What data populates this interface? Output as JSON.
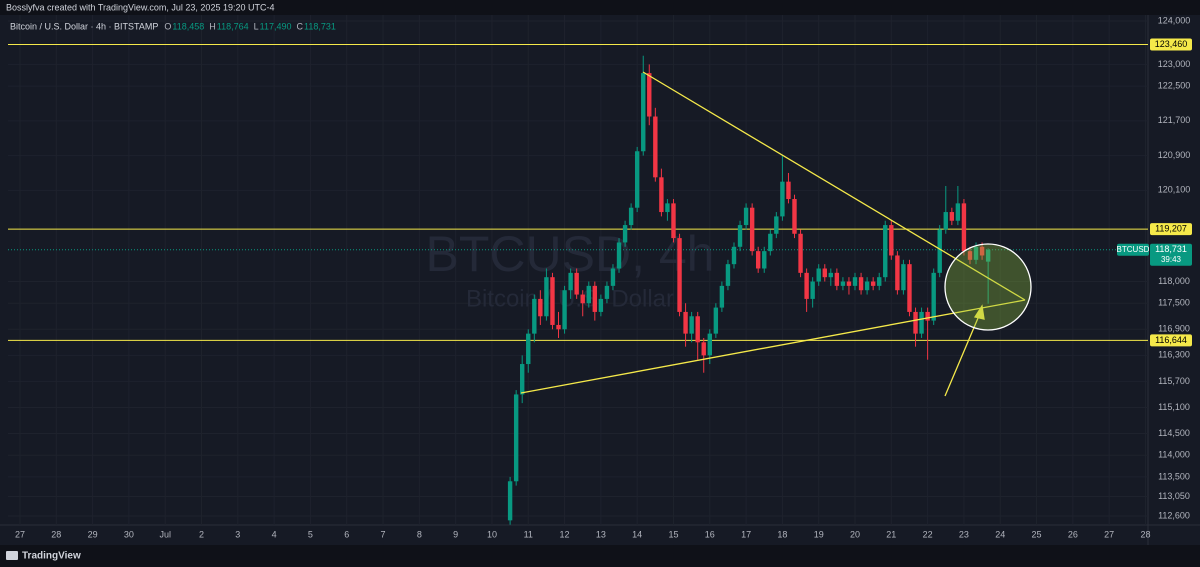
{
  "header": {
    "text": "Bosslyfva created with TradingView.com, Jul 23, 2025 19:20 UTC-4"
  },
  "footer": {
    "brand": "TradingView"
  },
  "chart_data": {
    "type": "candlestick",
    "legend": {
      "symbol": "Bitcoin / U.S. Dollar · 4h · BITSTAMP",
      "ohlc": [
        {
          "key": "O",
          "value": "118,458"
        },
        {
          "key": "H",
          "value": "118,764"
        },
        {
          "key": "L",
          "value": "117,490"
        },
        {
          "key": "C",
          "value": "118,731"
        }
      ]
    },
    "watermark": {
      "line1": "BTCUSD, 4h",
      "line2": "Bitcoin / U.S. Dollar"
    },
    "up_color": "#089981",
    "down_color": "#f23645",
    "grid": true,
    "x": [
      13.5,
      13.667,
      13.833,
      14,
      14.167,
      14.333,
      14.5,
      14.667,
      14.833,
      15,
      15.167,
      15.333,
      15.5,
      15.667,
      15.833,
      16,
      16.167,
      16.333,
      16.5,
      16.667,
      16.833,
      17,
      17.167,
      17.333,
      17.5,
      17.667,
      17.833,
      18,
      18.167,
      18.333,
      18.5,
      18.667,
      18.833,
      19,
      19.167,
      19.333,
      19.5,
      19.667,
      19.833,
      20,
      20.167,
      20.333,
      20.5,
      20.667,
      20.833,
      21,
      21.167,
      21.333,
      21.5,
      21.667,
      21.833,
      22,
      22.167,
      22.333,
      22.5,
      22.667,
      22.833,
      23,
      23.167,
      23.333,
      23.5,
      23.667,
      23.833,
      24,
      24.167,
      24.333,
      24.5,
      24.667,
      24.833,
      25,
      25.167,
      25.333,
      25.5,
      25.667,
      25.833,
      26,
      26.167,
      26.333,
      26.5,
      26.667
    ],
    "open": [
      112500,
      113400,
      115400,
      116100,
      116800,
      117600,
      117200,
      118100,
      117000,
      116900,
      117800,
      118200,
      117700,
      117500,
      117900,
      117300,
      117600,
      117900,
      118300,
      118900,
      119300,
      119700,
      121000,
      122800,
      121800,
      120400,
      119600,
      119800,
      119000,
      117300,
      116800,
      117200,
      116600,
      116300,
      116800,
      117400,
      117900,
      118400,
      118800,
      119300,
      119700,
      118700,
      118300,
      118700,
      119100,
      119500,
      120300,
      119900,
      119100,
      118200,
      117600,
      118000,
      118300,
      118100,
      118200,
      117900,
      118000,
      117900,
      118100,
      117800,
      118000,
      117900,
      118100,
      119300,
      118600,
      117800,
      118400,
      117300,
      116800,
      117300,
      117100,
      118200,
      119200,
      119600,
      119400,
      119800,
      118700,
      118500,
      118800,
      118458
    ],
    "high": [
      113500,
      115500,
      116300,
      116900,
      117700,
      117800,
      118300,
      118200,
      117300,
      117900,
      118300,
      118300,
      117800,
      118000,
      118000,
      117700,
      118000,
      118400,
      119000,
      119400,
      119800,
      121100,
      123200,
      123000,
      122000,
      120600,
      119900,
      119900,
      119100,
      117500,
      117300,
      117300,
      116700,
      116900,
      117500,
      118000,
      118500,
      118900,
      119400,
      119800,
      119800,
      118800,
      118800,
      119200,
      119600,
      120900,
      120500,
      120000,
      119200,
      118300,
      118100,
      118400,
      118400,
      118300,
      118300,
      118100,
      118100,
      118200,
      118200,
      118100,
      118100,
      118200,
      119400,
      119400,
      118700,
      118500,
      118500,
      117400,
      117400,
      117400,
      118300,
      119300,
      120200,
      119700,
      120200,
      119900,
      118800,
      118900,
      118900,
      118764
    ],
    "low": [
      112400,
      113300,
      115200,
      115900,
      116600,
      117000,
      117100,
      116900,
      116700,
      116800,
      117600,
      117600,
      117200,
      117400,
      117100,
      117200,
      117500,
      117800,
      118200,
      118800,
      119200,
      119600,
      120900,
      121600,
      120300,
      119500,
      119400,
      118900,
      117200,
      116500,
      116600,
      116200,
      115900,
      116100,
      116700,
      117300,
      117800,
      118300,
      118700,
      119200,
      118600,
      118200,
      118200,
      118600,
      119000,
      119400,
      119800,
      119000,
      118100,
      117300,
      117400,
      117900,
      118000,
      117900,
      117800,
      117800,
      117700,
      117800,
      117700,
      117700,
      117800,
      117800,
      118000,
      118500,
      117700,
      117700,
      117200,
      116500,
      116700,
      116200,
      117000,
      118100,
      119100,
      119300,
      119300,
      118600,
      118400,
      118400,
      118500,
      117490
    ],
    "close": [
      113400,
      115400,
      116100,
      116800,
      117600,
      117200,
      118100,
      117000,
      116900,
      117800,
      118200,
      117700,
      117500,
      117900,
      117300,
      117600,
      117900,
      118300,
      118900,
      119300,
      119700,
      121000,
      122800,
      121800,
      120400,
      119600,
      119800,
      119000,
      117300,
      116800,
      117200,
      116600,
      116300,
      116800,
      117400,
      117900,
      118400,
      118800,
      119300,
      119700,
      118700,
      118300,
      118700,
      119100,
      119500,
      120300,
      119900,
      119100,
      118200,
      117600,
      118000,
      118300,
      118100,
      118200,
      117900,
      118000,
      117900,
      118100,
      117800,
      118000,
      117900,
      118100,
      119300,
      118600,
      117800,
      118400,
      117300,
      116800,
      117300,
      117100,
      118200,
      119200,
      119600,
      119400,
      119800,
      118700,
      118500,
      118800,
      118600,
      118731
    ],
    "xlim": [
      -0.33,
      31.07
    ],
    "xticks": [
      {
        "value": 0,
        "label": "27"
      },
      {
        "value": 1,
        "label": "28"
      },
      {
        "value": 2,
        "label": "29"
      },
      {
        "value": 3,
        "label": "30"
      },
      {
        "value": 4,
        "label": "Jul"
      },
      {
        "value": 5,
        "label": "2"
      },
      {
        "value": 6,
        "label": "3"
      },
      {
        "value": 7,
        "label": "4"
      },
      {
        "value": 8,
        "label": "5"
      },
      {
        "value": 9,
        "label": "6"
      },
      {
        "value": 10,
        "label": "7"
      },
      {
        "value": 11,
        "label": "8"
      },
      {
        "value": 12,
        "label": "9"
      },
      {
        "value": 13,
        "label": "10"
      },
      {
        "value": 14,
        "label": "11"
      },
      {
        "value": 15,
        "label": "12"
      },
      {
        "value": 16,
        "label": "13"
      },
      {
        "value": 17,
        "label": "14"
      },
      {
        "value": 18,
        "label": "15"
      },
      {
        "value": 19,
        "label": "16"
      },
      {
        "value": 20,
        "label": "17"
      },
      {
        "value": 21,
        "label": "18"
      },
      {
        "value": 22,
        "label": "19"
      },
      {
        "value": 23,
        "label": "20"
      },
      {
        "value": 24,
        "label": "21"
      },
      {
        "value": 25,
        "label": "22"
      },
      {
        "value": 26,
        "label": "23"
      },
      {
        "value": 27,
        "label": "24"
      },
      {
        "value": 28,
        "label": "25"
      },
      {
        "value": 29,
        "label": "26"
      },
      {
        "value": 30,
        "label": "27"
      },
      {
        "value": 31,
        "label": "28"
      }
    ],
    "ylim": [
      112393,
      124138
    ],
    "yticks": [
      {
        "value": 124000,
        "label": "124,000"
      },
      {
        "value": 123000,
        "label": "123,000"
      },
      {
        "value": 122500,
        "label": "122,500"
      },
      {
        "value": 121700,
        "label": "121,700"
      },
      {
        "value": 120900,
        "label": "120,900"
      },
      {
        "value": 120100,
        "label": "120,100"
      },
      {
        "value": 118000,
        "label": "118,000"
      },
      {
        "value": 117500,
        "label": "117,500"
      },
      {
        "value": 116900,
        "label": "116,900"
      },
      {
        "value": 116300,
        "label": "116,300"
      },
      {
        "value": 115700,
        "label": "115,700"
      },
      {
        "value": 115100,
        "label": "115,100"
      },
      {
        "value": 114500,
        "label": "114,500"
      },
      {
        "value": 114000,
        "label": "114,000"
      },
      {
        "value": 113500,
        "label": "113,500"
      },
      {
        "value": 113050,
        "label": "113,050"
      },
      {
        "value": 112600,
        "label": "112,600"
      }
    ],
    "levels": [
      {
        "value": 123460,
        "label": "123,460"
      },
      {
        "value": 119207,
        "label": "119,207"
      },
      {
        "value": 116644,
        "label": "116,644"
      }
    ],
    "level_color": "#f5e94a",
    "last_price": {
      "symbol": "BTCUSD",
      "value": 118731,
      "label": "118,731",
      "countdown": "39:43"
    }
  }
}
